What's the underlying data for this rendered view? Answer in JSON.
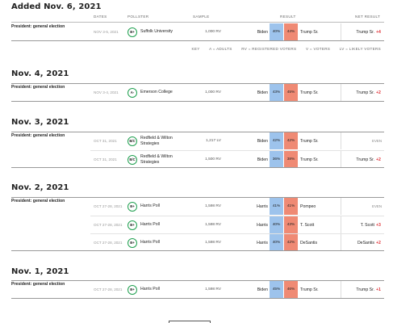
{
  "columns": {
    "dates": "DATES",
    "pollster": "POLLSTER",
    "sample": "SAMPLE",
    "result": "RESULT",
    "net_result": "NET RESULT"
  },
  "key": {
    "label": "KEY",
    "adults": "A = ADULTS",
    "registered": "RV = REGISTERED VOTERS",
    "voters": "V = VOTERS",
    "likely": "LV = LIKELY VOTERS"
  },
  "groups": [
    {
      "date": "Added Nov. 6, 2021",
      "race": "President: general election",
      "polls": [
        {
          "dates": "NOV 3-5, 2021",
          "grade": "B+",
          "pollster": "Suffolk University",
          "sample": "1,000 RV",
          "cand1": "Biden",
          "pct1": "40%",
          "pct2": "44%",
          "cand2": "Trump Sr.",
          "net_winner": "Trump Sr.",
          "net_margin": "+4",
          "even": ""
        }
      ]
    },
    {
      "date": "Nov. 4, 2021",
      "race": "President: general election",
      "polls": [
        {
          "dates": "NOV 3-4, 2021",
          "grade": "A-",
          "pollster": "Emerson College",
          "sample": "1,000 RV",
          "cand1": "Biden",
          "pct1": "43%",
          "pct2": "45%",
          "cand2": "Trump Sr.",
          "net_winner": "Trump Sr.",
          "net_margin": "+2",
          "even": ""
        }
      ]
    },
    {
      "date": "Nov. 3, 2021",
      "race": "President: general election",
      "polls": [
        {
          "dates": "OCT 31, 2021",
          "grade": "B/C",
          "pollster": "Redfield & Wilton Strategies",
          "sample": "1,217 LV",
          "cand1": "Biden",
          "pct1": "42%",
          "pct2": "42%",
          "cand2": "Trump Sr.",
          "net_winner": "",
          "net_margin": "",
          "even": "EVEN"
        },
        {
          "dates": "OCT 31, 2021",
          "grade": "B/C",
          "pollster": "Redfield & Wilton Strategies",
          "sample": "1,500 RV",
          "cand1": "Biden",
          "pct1": "36%",
          "pct2": "38%",
          "cand2": "Trump Sr.",
          "net_winner": "Trump Sr.",
          "net_margin": "+2",
          "even": ""
        }
      ]
    },
    {
      "date": "Nov. 2, 2021",
      "race": "President: general election",
      "polls": [
        {
          "dates": "OCT 27-28, 2021",
          "grade": "B+",
          "pollster": "Harris Poll",
          "sample": "1,598 RV",
          "cand1": "Harris",
          "pct1": "41%",
          "pct2": "41%",
          "cand2": "Pompeo",
          "net_winner": "",
          "net_margin": "",
          "even": "EVEN"
        },
        {
          "dates": "OCT 27-28, 2021",
          "grade": "B+",
          "pollster": "Harris Poll",
          "sample": "1,598 RV",
          "cand1": "Harris",
          "pct1": "40%",
          "pct2": "43%",
          "cand2": "T. Scott",
          "net_winner": "T. Scott",
          "net_margin": "+3",
          "even": ""
        },
        {
          "dates": "OCT 27-28, 2021",
          "grade": "B+",
          "pollster": "Harris Poll",
          "sample": "1,598 RV",
          "cand1": "Harris",
          "pct1": "40%",
          "pct2": "42%",
          "cand2": "DeSantis",
          "net_winner": "DeSantis",
          "net_margin": "+2",
          "even": ""
        }
      ]
    },
    {
      "date": "Nov. 1, 2021",
      "race": "President: general election",
      "polls": [
        {
          "dates": "OCT 27-28, 2021",
          "grade": "B+",
          "pollster": "Harris Poll",
          "sample": "1,598 RV",
          "cand1": "Biden",
          "pct1": "45%",
          "pct2": "46%",
          "cand2": "Trump Sr.",
          "net_winner": "Trump Sr.",
          "net_margin": "+1",
          "even": ""
        }
      ]
    }
  ],
  "colors": {
    "dem_fill": "#9dc3ec",
    "rep_fill": "#ef8a74",
    "margin_text": "#e0353b",
    "grade_ring": "#20a050"
  }
}
